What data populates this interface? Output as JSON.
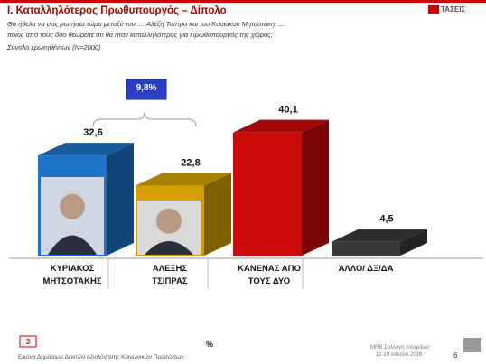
{
  "chart_data": {
    "type": "bar3d",
    "title": "I. Καταλληλότερος Πρωθυπουργός – Δίπολο",
    "question": [
      "Θα ήθελα να σας ρωτήσω τώρα μεταξύ του .... Αλέξη Τσίπρα και του Κυριάκου Μητσοτάκη ....",
      "ποιος από τους δύο θεωρείτε ότι θα ήταν καταλληλότερος για Πρωθυπουργός της χώρας;"
    ],
    "base": "Σύνολο ερωτηθέντων (Ν=2000)",
    "categories": [
      "ΚΥΡΙΑΚΟΣ ΜΗΤΣΟΤΑΚΗΣ",
      "ΑΛΕΞΗΣ ΤΣΙΠΡΑΣ",
      "ΚΑΝΕΝΑΣ ΑΠΟ ΤΟΥΣ ΔΥΟ",
      "ΆΛΛΟ/ ΔΞ/ΔΑ"
    ],
    "values": [
      32.6,
      22.8,
      40.1,
      4.5
    ],
    "value_labels": [
      "32,6",
      "22,8",
      "40,1",
      "4,5"
    ],
    "colors": [
      "#1e73c8",
      "#d2a000",
      "#cc0a0a",
      "#3a3a3a"
    ],
    "difference_label": "9,8%",
    "ylim": [
      0,
      50
    ],
    "unit_label": "%",
    "footer": {
      "logo": "ΤΑΣΕΙΣ",
      "slide_section": "3",
      "left_note": "Εικόνα Δημόσιων Δεικτών Αξιολόγησης Κοινωνικών Προσώπων",
      "source": [
        "MRB Συλλογή στοιχείων:",
        "12-19 Ιουνίου 2018"
      ],
      "page": "6"
    }
  }
}
